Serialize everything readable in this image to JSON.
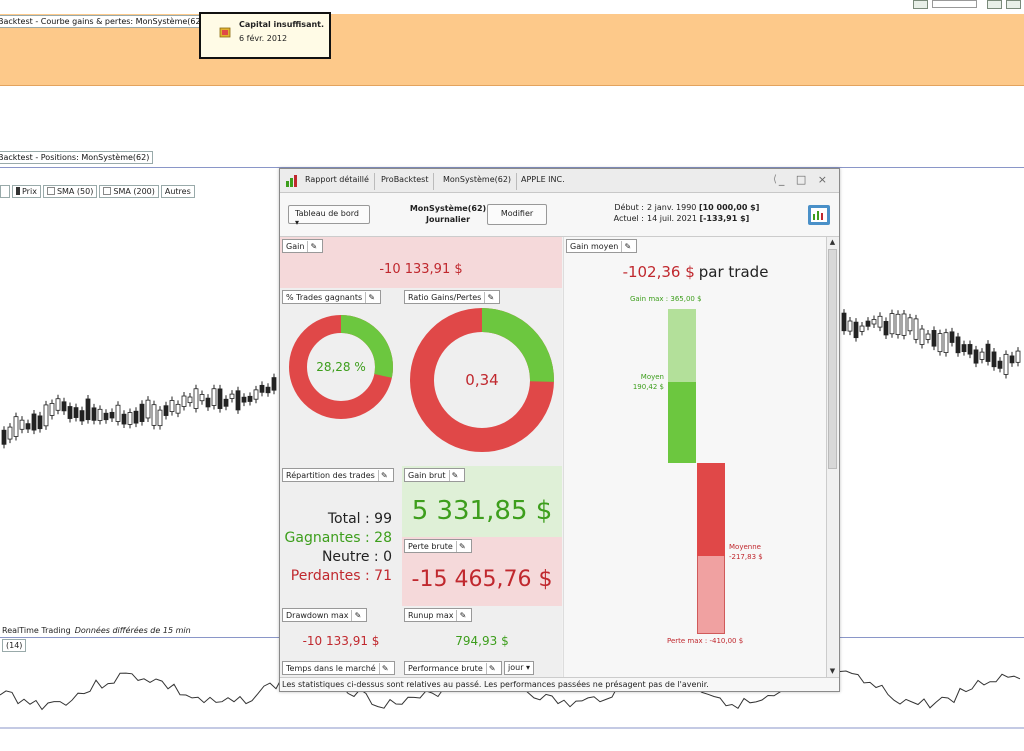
{
  "background": {
    "equity_tab": "Backtest - Courbe gains & pertes: MonSystème(62)",
    "positions_tab": "Backtest - Positions: MonSystème(62)",
    "chart_controls": {
      "prix": "Prix",
      "sma50": "SMA (50)",
      "sma200": "SMA (200)",
      "autres": "Autres"
    },
    "realtime_label": "RealTime Trading",
    "realtime_note": "Données différées de 15 min",
    "indicator_tag": "(14)",
    "alert": {
      "title": "Capital insuffisant.",
      "date": "6 févr. 2012"
    }
  },
  "window": {
    "tabs": [
      "Rapport détaillé",
      "ProBacktest",
      "MonSystème(62)",
      "APPLE INC."
    ],
    "controls": "_ □ ×",
    "toolbar": {
      "dashboard_label": "Tableau de bord",
      "system_name": "MonSystème(62)",
      "timeframe": "Journalier",
      "modify_label": "Modifier",
      "start_label": "Début :",
      "start_date": "2 janv. 1990",
      "start_capital": "[10 000,00 $]",
      "current_label": "Actuel :",
      "current_date": "14 juil. 2021",
      "current_capital": "[-133,91 $]"
    },
    "cards": {
      "gain": {
        "label": "Gain",
        "value": "-10 133,91 $"
      },
      "pct_winning": {
        "label": "% Trades gagnants",
        "value": "28,28 %",
        "fraction": 0.2828
      },
      "ratio": {
        "label": "Ratio Gains/Pertes",
        "value": "0,34",
        "fraction": 0.254
      },
      "distribution": {
        "label": "Répartition des trades",
        "total": "Total : 99",
        "winning": "Gagnantes : 28",
        "neutral": "Neutre : 0",
        "losing": "Perdantes : 71"
      },
      "gross_gain": {
        "label": "Gain brut",
        "value": "5 331,85 $"
      },
      "gross_loss": {
        "label": "Perte brute",
        "value": "-15 465,76 $"
      },
      "drawdown": {
        "label": "Drawdown max",
        "value": "-10 133,91 $"
      },
      "runup": {
        "label": "Runup max",
        "value": "794,93 $"
      },
      "time_in_market": {
        "label": "Temps dans le marché"
      },
      "perf": {
        "label": "Performance brute",
        "period": "jour"
      },
      "avg_gain": {
        "label": "Gain moyen",
        "value": "-102,36 $",
        "per": "par trade",
        "max_gain_label": "Gain max : 365,00 $",
        "avg_win_label": "Moyen",
        "avg_win_value": "190,42 $",
        "avg_loss_label": "Moyenne",
        "avg_loss_value": "-217,83 $",
        "max_loss_label": "Perte max : -410,00 $"
      }
    },
    "footer": "Les statistiques ci-dessus sont relatives au passé. Les performances passées ne présagent pas de l'avenir."
  },
  "colors": {
    "red": "#e04848",
    "green": "#6cc73f",
    "equity_bg": "#fdc98a"
  }
}
